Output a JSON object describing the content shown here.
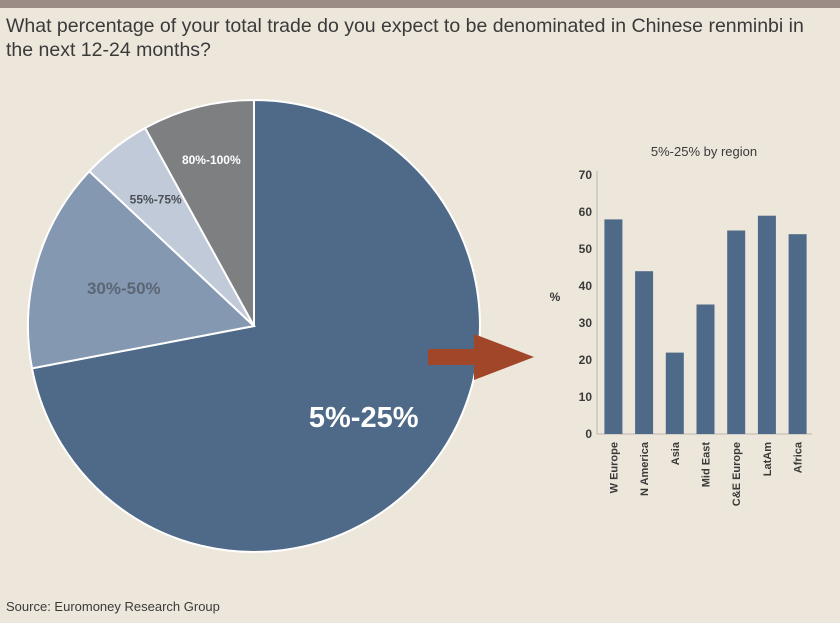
{
  "title": "What percentage of your total trade do you expect to be denominated in Chinese renminbi in the next 12-24 months?",
  "source": "Source: Euromoney Research Group",
  "colors": {
    "background": "#ede6db",
    "slice_5_25": "#4e6a88",
    "slice_30_50": "#8598b1",
    "slice_55_75": "#c1cad8",
    "slice_80_100": "#7e7f81",
    "bar": "#4e6a88",
    "arrow": "#a2462a"
  },
  "chart_data": [
    {
      "type": "pie",
      "title": "",
      "slices": [
        {
          "label": "5%-25%",
          "value": 72
        },
        {
          "label": "30%-50%",
          "value": 15
        },
        {
          "label": "55%-75%",
          "value": 5
        },
        {
          "label": "80%-100%",
          "value": 8
        }
      ]
    },
    {
      "type": "bar",
      "title": "5%-25% by region",
      "xlabel": "",
      "ylabel": "%",
      "ylim": [
        0,
        70
      ],
      "yticks": [
        0,
        10,
        20,
        30,
        40,
        50,
        60,
        70
      ],
      "grid": false,
      "categories": [
        "W Europe",
        "N America",
        "Asia",
        "Mid East",
        "C&E Europe",
        "LatAm",
        "Africa"
      ],
      "values": [
        58,
        44,
        22,
        35,
        55,
        59,
        54
      ]
    }
  ]
}
